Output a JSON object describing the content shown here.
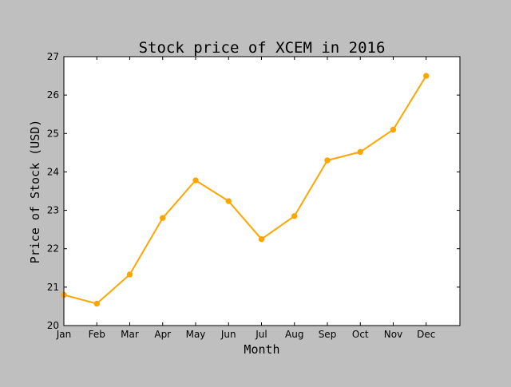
{
  "chart_data": {
    "type": "line",
    "title": "Stock price of XCEM in 2016",
    "xlabel": "Month",
    "ylabel": "Price of Stock (USD)",
    "categories": [
      "Jan",
      "Feb",
      "Mar",
      "Apr",
      "May",
      "Jun",
      "Jul",
      "Aug",
      "Sep",
      "Oct",
      "Nov",
      "Dec"
    ],
    "values": [
      20.8,
      20.57,
      21.33,
      22.8,
      23.78,
      23.24,
      22.25,
      22.85,
      24.3,
      24.52,
      25.1,
      26.5
    ],
    "ylim": [
      20,
      27
    ],
    "yticks": [
      "20",
      "21",
      "22",
      "23",
      "24",
      "25",
      "26",
      "27"
    ],
    "grid": false,
    "legend": "none",
    "colors": {
      "line": "#ffa500",
      "marker": "#ffa500",
      "axes_face": "#ffffff",
      "figure_face": "#bfbfbf",
      "spine": "#000000"
    }
  }
}
